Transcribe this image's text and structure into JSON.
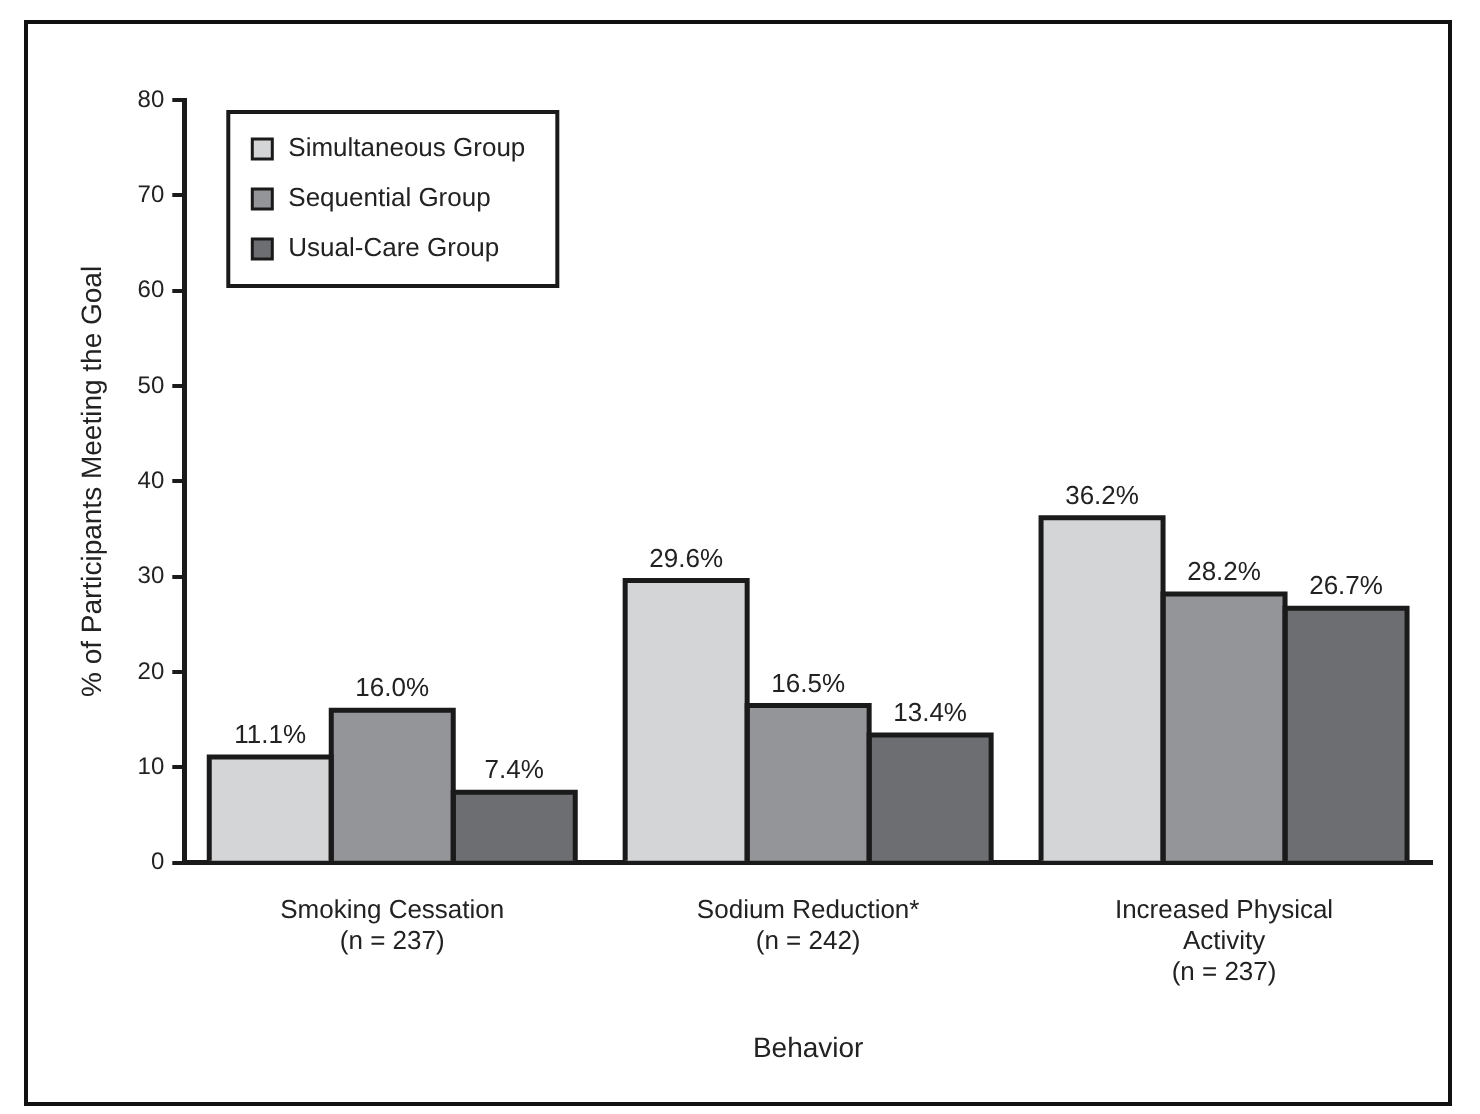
{
  "chart_data": {
    "type": "bar",
    "xlabel": "Behavior",
    "ylabel": "% of Participants Meeting the Goal",
    "categories": [
      "Smoking Cessation\n(n = 237)",
      "Sodium Reduction*\n(n = 242)",
      "Increased Physical\nActivity\n(n = 237)"
    ],
    "series": [
      {
        "name": "Simultaneous Group",
        "color": "#d4d5d7",
        "values": [
          11.1,
          29.6,
          36.2
        ],
        "value_labels": [
          "11.1%",
          "29.6%",
          "36.2%"
        ]
      },
      {
        "name": "Sequential Group",
        "color": "#939598",
        "values": [
          16.0,
          16.5,
          28.2
        ],
        "value_labels": [
          "16.0%",
          "16.5%",
          "28.2%"
        ]
      },
      {
        "name": "Usual-Care Group",
        "color": "#6d6e71",
        "values": [
          7.4,
          13.4,
          26.7
        ],
        "value_labels": [
          "7.4%",
          "13.4%",
          "26.7%"
        ]
      }
    ],
    "ylim": [
      0,
      80
    ],
    "yticks": [
      0,
      10,
      20,
      30,
      40,
      50,
      60,
      70,
      80
    ],
    "grid": false,
    "legend": "top left"
  }
}
